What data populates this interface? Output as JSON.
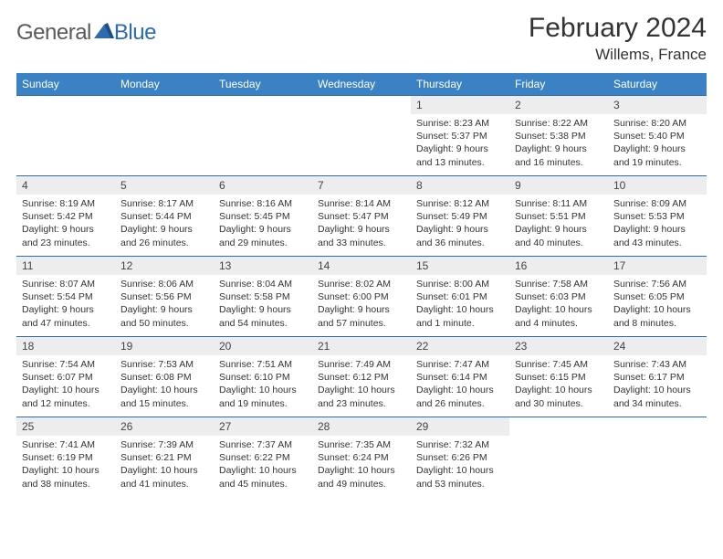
{
  "logo": {
    "text1": "General",
    "text2": "Blue",
    "color1": "#5a5a5a",
    "color2": "#2d6bb0"
  },
  "title": "February 2024",
  "location": "Willems, France",
  "colors": {
    "header_bg": "#3a82c4",
    "header_text": "#ffffff",
    "row_border": "#2d6bb0",
    "daynum_bg": "#ededed",
    "text": "#333333",
    "background": "#ffffff"
  },
  "day_names": [
    "Sunday",
    "Monday",
    "Tuesday",
    "Wednesday",
    "Thursday",
    "Friday",
    "Saturday"
  ],
  "weeks": [
    [
      null,
      null,
      null,
      null,
      {
        "n": "1",
        "sr": "Sunrise: 8:23 AM",
        "ss": "Sunset: 5:37 PM",
        "d1": "Daylight: 9 hours",
        "d2": "and 13 minutes."
      },
      {
        "n": "2",
        "sr": "Sunrise: 8:22 AM",
        "ss": "Sunset: 5:38 PM",
        "d1": "Daylight: 9 hours",
        "d2": "and 16 minutes."
      },
      {
        "n": "3",
        "sr": "Sunrise: 8:20 AM",
        "ss": "Sunset: 5:40 PM",
        "d1": "Daylight: 9 hours",
        "d2": "and 19 minutes."
      }
    ],
    [
      {
        "n": "4",
        "sr": "Sunrise: 8:19 AM",
        "ss": "Sunset: 5:42 PM",
        "d1": "Daylight: 9 hours",
        "d2": "and 23 minutes."
      },
      {
        "n": "5",
        "sr": "Sunrise: 8:17 AM",
        "ss": "Sunset: 5:44 PM",
        "d1": "Daylight: 9 hours",
        "d2": "and 26 minutes."
      },
      {
        "n": "6",
        "sr": "Sunrise: 8:16 AM",
        "ss": "Sunset: 5:45 PM",
        "d1": "Daylight: 9 hours",
        "d2": "and 29 minutes."
      },
      {
        "n": "7",
        "sr": "Sunrise: 8:14 AM",
        "ss": "Sunset: 5:47 PM",
        "d1": "Daylight: 9 hours",
        "d2": "and 33 minutes."
      },
      {
        "n": "8",
        "sr": "Sunrise: 8:12 AM",
        "ss": "Sunset: 5:49 PM",
        "d1": "Daylight: 9 hours",
        "d2": "and 36 minutes."
      },
      {
        "n": "9",
        "sr": "Sunrise: 8:11 AM",
        "ss": "Sunset: 5:51 PM",
        "d1": "Daylight: 9 hours",
        "d2": "and 40 minutes."
      },
      {
        "n": "10",
        "sr": "Sunrise: 8:09 AM",
        "ss": "Sunset: 5:53 PM",
        "d1": "Daylight: 9 hours",
        "d2": "and 43 minutes."
      }
    ],
    [
      {
        "n": "11",
        "sr": "Sunrise: 8:07 AM",
        "ss": "Sunset: 5:54 PM",
        "d1": "Daylight: 9 hours",
        "d2": "and 47 minutes."
      },
      {
        "n": "12",
        "sr": "Sunrise: 8:06 AM",
        "ss": "Sunset: 5:56 PM",
        "d1": "Daylight: 9 hours",
        "d2": "and 50 minutes."
      },
      {
        "n": "13",
        "sr": "Sunrise: 8:04 AM",
        "ss": "Sunset: 5:58 PM",
        "d1": "Daylight: 9 hours",
        "d2": "and 54 minutes."
      },
      {
        "n": "14",
        "sr": "Sunrise: 8:02 AM",
        "ss": "Sunset: 6:00 PM",
        "d1": "Daylight: 9 hours",
        "d2": "and 57 minutes."
      },
      {
        "n": "15",
        "sr": "Sunrise: 8:00 AM",
        "ss": "Sunset: 6:01 PM",
        "d1": "Daylight: 10 hours",
        "d2": "and 1 minute."
      },
      {
        "n": "16",
        "sr": "Sunrise: 7:58 AM",
        "ss": "Sunset: 6:03 PM",
        "d1": "Daylight: 10 hours",
        "d2": "and 4 minutes."
      },
      {
        "n": "17",
        "sr": "Sunrise: 7:56 AM",
        "ss": "Sunset: 6:05 PM",
        "d1": "Daylight: 10 hours",
        "d2": "and 8 minutes."
      }
    ],
    [
      {
        "n": "18",
        "sr": "Sunrise: 7:54 AM",
        "ss": "Sunset: 6:07 PM",
        "d1": "Daylight: 10 hours",
        "d2": "and 12 minutes."
      },
      {
        "n": "19",
        "sr": "Sunrise: 7:53 AM",
        "ss": "Sunset: 6:08 PM",
        "d1": "Daylight: 10 hours",
        "d2": "and 15 minutes."
      },
      {
        "n": "20",
        "sr": "Sunrise: 7:51 AM",
        "ss": "Sunset: 6:10 PM",
        "d1": "Daylight: 10 hours",
        "d2": "and 19 minutes."
      },
      {
        "n": "21",
        "sr": "Sunrise: 7:49 AM",
        "ss": "Sunset: 6:12 PM",
        "d1": "Daylight: 10 hours",
        "d2": "and 23 minutes."
      },
      {
        "n": "22",
        "sr": "Sunrise: 7:47 AM",
        "ss": "Sunset: 6:14 PM",
        "d1": "Daylight: 10 hours",
        "d2": "and 26 minutes."
      },
      {
        "n": "23",
        "sr": "Sunrise: 7:45 AM",
        "ss": "Sunset: 6:15 PM",
        "d1": "Daylight: 10 hours",
        "d2": "and 30 minutes."
      },
      {
        "n": "24",
        "sr": "Sunrise: 7:43 AM",
        "ss": "Sunset: 6:17 PM",
        "d1": "Daylight: 10 hours",
        "d2": "and 34 minutes."
      }
    ],
    [
      {
        "n": "25",
        "sr": "Sunrise: 7:41 AM",
        "ss": "Sunset: 6:19 PM",
        "d1": "Daylight: 10 hours",
        "d2": "and 38 minutes."
      },
      {
        "n": "26",
        "sr": "Sunrise: 7:39 AM",
        "ss": "Sunset: 6:21 PM",
        "d1": "Daylight: 10 hours",
        "d2": "and 41 minutes."
      },
      {
        "n": "27",
        "sr": "Sunrise: 7:37 AM",
        "ss": "Sunset: 6:22 PM",
        "d1": "Daylight: 10 hours",
        "d2": "and 45 minutes."
      },
      {
        "n": "28",
        "sr": "Sunrise: 7:35 AM",
        "ss": "Sunset: 6:24 PM",
        "d1": "Daylight: 10 hours",
        "d2": "and 49 minutes."
      },
      {
        "n": "29",
        "sr": "Sunrise: 7:32 AM",
        "ss": "Sunset: 6:26 PM",
        "d1": "Daylight: 10 hours",
        "d2": "and 53 minutes."
      },
      null,
      null
    ]
  ]
}
